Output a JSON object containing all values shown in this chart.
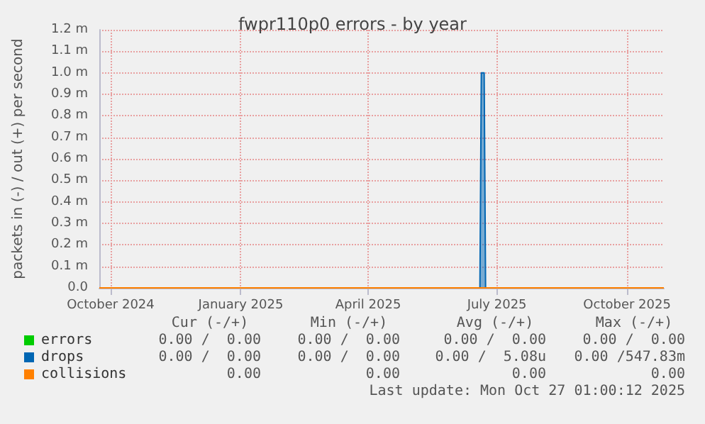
{
  "chart_data": {
    "type": "line",
    "title": "fwpr110p0 errors - by year",
    "ylabel": "packets in (-) / out (+) per second",
    "xlim": [
      "2024-09-23",
      "2025-10-27"
    ],
    "xticks": [
      {
        "value": "2024-10-01",
        "label": "October 2024"
      },
      {
        "value": "2025-01-01",
        "label": "January 2025"
      },
      {
        "value": "2025-04-01",
        "label": "April 2025"
      },
      {
        "value": "2025-07-01",
        "label": "July 2025"
      },
      {
        "value": "2025-10-01",
        "label": "October 2025"
      }
    ],
    "ylim": [
      0,
      1.2
    ],
    "yticks": [
      {
        "value": 0,
        "label": "0.0"
      },
      {
        "value": 0.1,
        "label": "0.1 m"
      },
      {
        "value": 0.2,
        "label": "0.2 m"
      },
      {
        "value": 0.3,
        "label": "0.3 m"
      },
      {
        "value": 0.4,
        "label": "0.4 m"
      },
      {
        "value": 0.5,
        "label": "0.5 m"
      },
      {
        "value": 0.6,
        "label": "0.6 m"
      },
      {
        "value": 0.7,
        "label": "0.7 m"
      },
      {
        "value": 0.8,
        "label": "0.8 m"
      },
      {
        "value": 0.9,
        "label": "0.9 m"
      },
      {
        "value": 1.0,
        "label": "1.0 m"
      },
      {
        "value": 1.1,
        "label": "1.1 m"
      },
      {
        "value": 1.2,
        "label": "1.2 m"
      }
    ],
    "grid": true,
    "legend": "bottom left",
    "marker": "none",
    "series": [
      {
        "name": "errors",
        "color": "#00cc00"
      },
      {
        "name": "drops",
        "color": "#0066b3",
        "type": "area",
        "x": [
          "2024-09-23",
          "2025-06-19",
          "2025-06-20",
          "2025-06-22",
          "2025-06-23",
          "2025-10-27"
        ],
        "values": [
          0,
          0,
          1.0,
          1.0,
          0,
          0
        ]
      },
      {
        "name": "collisions",
        "color": "#ff8000",
        "x": [
          "2024-09-23",
          "2025-10-27"
        ],
        "values": [
          0,
          0
        ]
      }
    ],
    "annotations": [
      "Cur (-/+)",
      "Min (-/+)",
      "Avg (-/+)",
      "Max (-/+)",
      "0.00 /  0.00",
      "0.00 /  0.00",
      "0.00 /  0.00",
      "0.00 /  0.00",
      "0.00 /  0.00",
      "0.00 /  0.00",
      "0.00 /  5.08u",
      "0.00 /547.83m",
      "0.00",
      "0.00",
      "0.00",
      "0.00",
      "Last update: Mon Oct 27 01:00:12 2025"
    ]
  }
}
